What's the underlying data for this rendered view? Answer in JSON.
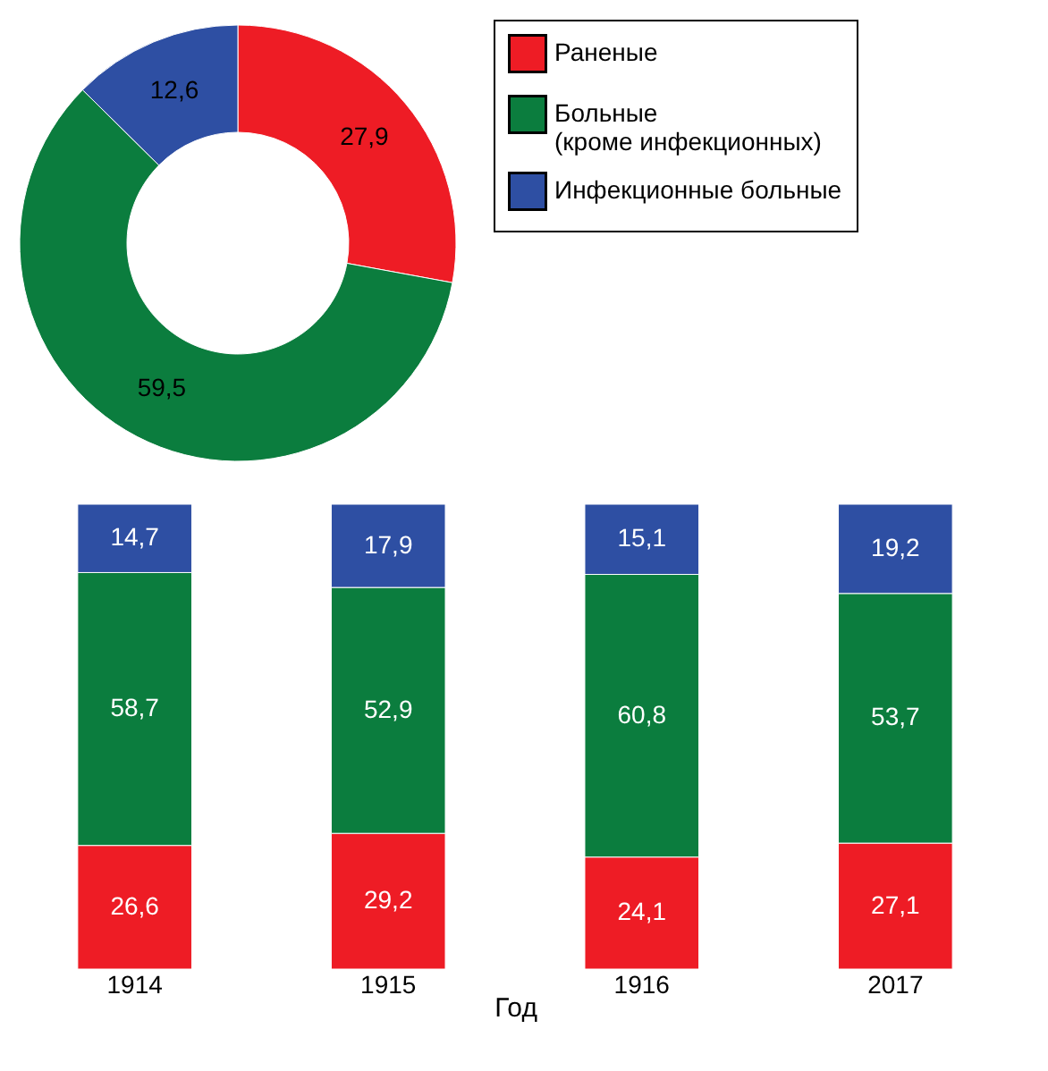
{
  "chart_data": [
    {
      "type": "donut",
      "categories": [
        "Раненые",
        "Больные\n(кроме инфекционных)",
        "Инфекционные больные"
      ],
      "values": [
        27.9,
        59.5,
        12.6
      ],
      "value_labels": [
        "27,9",
        "59,5",
        "12,6"
      ],
      "colors": [
        "#ee1c25",
        "#0b7d3e",
        "#2e4fa3"
      ],
      "legend": "right"
    },
    {
      "type": "bar",
      "stacked": true,
      "categories": [
        "1914",
        "1915",
        "1916",
        "2017"
      ],
      "xlabel": "Год",
      "series": [
        {
          "color": "#ee1c25",
          "values": [
            26.6,
            29.2,
            24.1,
            27.1
          ],
          "value_labels": [
            "26,6",
            "29,2",
            "24,1",
            "27,1"
          ]
        },
        {
          "color": "#0b7d3e",
          "values": [
            58.7,
            52.9,
            60.8,
            53.7
          ],
          "value_labels": [
            "58,7",
            "52,9",
            "60,8",
            "53,7"
          ]
        },
        {
          "color": "#2e4fa3",
          "values": [
            14.7,
            17.9,
            15.1,
            19.2
          ],
          "value_labels": [
            "14,7",
            "17,9",
            "15,1",
            "19,2"
          ]
        }
      ]
    }
  ]
}
